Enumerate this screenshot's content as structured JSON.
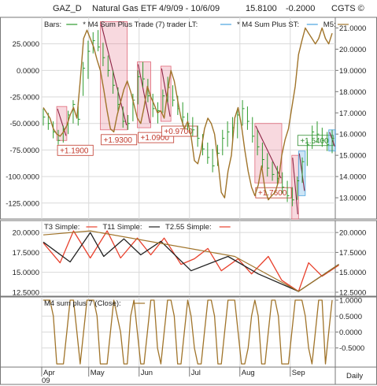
{
  "header": {
    "symbol": "GAZ_D",
    "name": "Natural Gas ETF",
    "range": "4/9/09 - 10/6/09",
    "last": "15.8100",
    "change": "-0.2000",
    "source": "CGTS ©"
  },
  "chart_data": [
    {
      "type": "line",
      "legend": [
        {
          "label": "Bars:",
          "color": "#2e9b2e"
        },
        {
          "label": "* M4 Sum Plus Trade (7) trader LT:",
          "color": "#4aa3df"
        },
        {
          "label": "* M4 Sum Plus ST:",
          "color": "#4aa3df"
        },
        {
          "label": "M5:",
          "color": "#a0742a"
        }
      ],
      "left_axis": {
        "ticks": [
          "25.0000",
          "0.0000",
          "-25.0000",
          "-50.0000",
          "-75.0000",
          "-100.0000",
          "-125.0000"
        ],
        "ylim": [
          -140,
          50
        ]
      },
      "right_axis": {
        "ticks": [
          "21.0000",
          "20.0000",
          "19.0000",
          "18.0000",
          "17.0000",
          "16.0000",
          "15.0000",
          "14.0000",
          "13.0000"
        ],
        "ylim": [
          12,
          21.5
        ]
      },
      "colors": {
        "m5": "#a0742a",
        "bars": "#2e9b2e",
        "short_box": "#e06a7a",
        "long_box": "#4aa3df",
        "trend": "#8b2344"
      },
      "m5_series": [
        -35,
        -40,
        -45,
        -55,
        -60,
        -62,
        -58,
        -52,
        -42,
        -35,
        -45,
        -10,
        30,
        38,
        30,
        22,
        10,
        0,
        -18,
        -38,
        -55,
        -58,
        -42,
        -30,
        -18,
        -10,
        -20,
        -32,
        -45,
        -50,
        -35,
        -15,
        -25,
        -32,
        -40,
        -38,
        -45,
        -20,
        0,
        -10,
        -28,
        -45,
        -55,
        -48,
        -62,
        -85,
        -88,
        -75,
        -55,
        -45,
        -50,
        -60,
        -85,
        -115,
        -120,
        -95,
        -80,
        -45,
        -35,
        -52,
        -75,
        -95,
        -110,
        -118,
        -108,
        -90,
        -112,
        -122,
        -118,
        -115,
        -105,
        -80,
        -65,
        -55,
        -35,
        -15,
        15,
        28,
        40,
        35,
        30,
        25,
        30,
        40,
        30,
        25,
        35
      ],
      "price_bars": [
        [
          16.4,
          17.2,
          16.8
        ],
        [
          16.2,
          17.0,
          16.5
        ],
        [
          15.8,
          16.6,
          16.1
        ],
        [
          15.5,
          16.2,
          15.7
        ],
        [
          15.6,
          16.4,
          16.2
        ],
        [
          16.0,
          17.1,
          16.9
        ],
        [
          16.5,
          17.6,
          17.4
        ],
        [
          16.4,
          17.3,
          16.7
        ],
        [
          17.8,
          19.4,
          19.1
        ],
        [
          18.6,
          20.4,
          19.9
        ],
        [
          19.8,
          20.8,
          20.4
        ],
        [
          19.9,
          20.9,
          20.1
        ],
        [
          19.2,
          20.3,
          19.6
        ],
        [
          18.7,
          19.7,
          19.0
        ],
        [
          17.9,
          19.0,
          18.3
        ],
        [
          17.0,
          18.2,
          17.4
        ],
        [
          16.3,
          17.3,
          16.6
        ],
        [
          16.2,
          16.9,
          16.5
        ],
        [
          16.6,
          17.9,
          17.6
        ],
        [
          17.4,
          19.0,
          18.7
        ],
        [
          18.2,
          19.4,
          18.6
        ],
        [
          17.5,
          18.6,
          17.8
        ],
        [
          16.8,
          17.9,
          17.2
        ],
        [
          16.5,
          17.5,
          17.1
        ],
        [
          17.0,
          18.1,
          17.8
        ],
        [
          17.5,
          18.7,
          18.2
        ],
        [
          17.3,
          18.3,
          17.6
        ],
        [
          16.9,
          17.8,
          17.2
        ],
        [
          16.4,
          17.5,
          16.8
        ],
        [
          16.2,
          17.0,
          16.5
        ],
        [
          15.9,
          16.8,
          16.2
        ],
        [
          15.4,
          16.4,
          15.8
        ],
        [
          15.0,
          16.0,
          15.3
        ],
        [
          14.6,
          15.6,
          14.9
        ],
        [
          14.2,
          15.3,
          14.5
        ],
        [
          14.5,
          15.5,
          15.1
        ],
        [
          15.0,
          16.2,
          15.8
        ],
        [
          15.4,
          16.6,
          16.1
        ],
        [
          15.6,
          16.8,
          16.3
        ],
        [
          15.8,
          17.2,
          16.9
        ],
        [
          16.4,
          17.6,
          17.2
        ],
        [
          16.2,
          17.3,
          16.6
        ],
        [
          15.6,
          16.8,
          15.9
        ],
        [
          15.0,
          16.2,
          15.4
        ],
        [
          14.4,
          15.6,
          14.8
        ],
        [
          14.0,
          15.1,
          14.4
        ],
        [
          13.8,
          14.7,
          14.1
        ],
        [
          13.6,
          14.5,
          13.9
        ],
        [
          13.2,
          14.2,
          13.5
        ],
        [
          12.8,
          13.8,
          13.1
        ],
        [
          12.6,
          13.5,
          12.9
        ],
        [
          12.9,
          14.0,
          13.8
        ],
        [
          13.7,
          14.9,
          14.7
        ],
        [
          14.5,
          15.7,
          15.5
        ],
        [
          15.3,
          16.4,
          16.1
        ],
        [
          15.6,
          16.6,
          16.0
        ],
        [
          15.4,
          16.3,
          15.7
        ],
        [
          15.2,
          16.1,
          15.5
        ],
        [
          15.1,
          16.2,
          15.8
        ]
      ],
      "boxes": [
        {
          "kind": "short",
          "label": "+1.1900",
          "bars": [
            4,
            7
          ],
          "top": 17.3,
          "bottom": 15.7
        },
        {
          "kind": "short",
          "label": "+1.9300",
          "bars": [
            17,
            25
          ],
          "top": 21.3,
          "bottom": 16.2
        },
        {
          "kind": "short",
          "label": "+1.0900",
          "bars": [
            28,
            32
          ],
          "top": 19.4,
          "bottom": 16.3
        },
        {
          "kind": "short",
          "label": "+0.9700",
          "bars": [
            35,
            38
          ],
          "top": 19.2,
          "bottom": 16.6
        },
        {
          "kind": "short",
          "label": "+1.7600",
          "bars": [
            63,
            71
          ],
          "top": 16.5,
          "bottom": 13.7
        },
        {
          "kind": "short",
          "label": "",
          "bars": [
            74,
            76
          ],
          "top": 15.0,
          "bottom": 12.0
        },
        {
          "kind": "long",
          "label": "+1.5400",
          "bars": [
            76,
            78
          ],
          "top": 15.2,
          "bottom": 13.1
        },
        {
          "kind": "long",
          "label": "",
          "bars": [
            85,
            87
          ],
          "top": 16.2,
          "bottom": 15.2
        }
      ]
    },
    {
      "type": "line",
      "legend": [
        {
          "label": "T3 Simple:",
          "color": "#e8412d"
        },
        {
          "label": "T11 Simple:",
          "color": "#222222"
        },
        {
          "label": "T2.55 Simple:",
          "color": "#e8412d"
        }
      ],
      "left_axis": {
        "ticks": [
          "20.0000",
          "17.5000",
          "15.0000",
          "12.5000"
        ],
        "ylim": [
          12,
          21.5
        ]
      },
      "right_axis": {
        "ticks": [
          "20.0000",
          "17.5000",
          "15.0000",
          "12.5000"
        ],
        "ylim": [
          12,
          21.5
        ]
      },
      "series": [
        {
          "color": "#e8412d",
          "x": [
            0,
            5,
            9,
            14,
            19,
            23,
            28,
            32,
            36,
            41,
            45,
            49,
            53,
            58,
            62,
            67,
            71,
            76,
            79,
            83,
            88
          ],
          "values": [
            18.7,
            16.2,
            20.2,
            16.8,
            20.2,
            16.8,
            19.3,
            17.2,
            19.3,
            16.0,
            16.7,
            18.0,
            15.2,
            16.7,
            14.8,
            17.0,
            14.0,
            12.6,
            16.2,
            14.5,
            15.9
          ]
        },
        {
          "color": "#222222",
          "x": [
            0,
            8,
            14,
            18,
            24,
            29,
            35,
            44,
            55,
            64,
            76,
            88
          ],
          "values": [
            18.8,
            16.3,
            20.0,
            17.0,
            19.2,
            17.2,
            18.9,
            15.2,
            17.0,
            14.8,
            12.6,
            16.0
          ]
        },
        {
          "color": "#a0742a",
          "x": [
            0,
            14,
            57,
            76,
            88
          ],
          "values": [
            19.7,
            20.2,
            17.0,
            12.6,
            16.0
          ]
        }
      ]
    },
    {
      "type": "line",
      "legend": [
        {
          "label": "M4 sum plus 7 (Close):",
          "color": "#a0742a"
        }
      ],
      "right_axis": {
        "ticks": [
          "1.0000",
          "0.5000",
          "0.0000",
          "-0.5000"
        ],
        "ylim": [
          -1.1,
          1.1
        ]
      },
      "values": [
        1,
        1,
        1,
        0.5,
        -1,
        -1,
        -1,
        0,
        1,
        1,
        0,
        -1,
        0,
        1,
        1,
        1,
        0.5,
        -1,
        -1,
        -1,
        0,
        1,
        0.5,
        0,
        -1,
        -1,
        0.5,
        1,
        0,
        -1,
        -1,
        0,
        1,
        1,
        -0.5,
        -1,
        0,
        1,
        1,
        0.5,
        -1,
        -1,
        0,
        1,
        0.5,
        -0.5,
        -1,
        -1,
        0,
        1,
        1,
        0.5,
        -1,
        -1,
        0,
        1,
        1,
        1,
        0,
        -1,
        -1,
        -0.5,
        0.5,
        1,
        0.5,
        -1,
        -1,
        0,
        1,
        1,
        0.5,
        -1,
        -1,
        -1,
        0,
        1,
        1,
        1,
        0.5,
        -0.5,
        -1,
        0,
        1,
        1,
        -1,
        0,
        1
      ]
    }
  ],
  "x_axis": {
    "months": [
      "Apr",
      "May",
      "Jun",
      "Jul",
      "Aug",
      "Sep"
    ],
    "year": "09",
    "period": "Daily"
  }
}
